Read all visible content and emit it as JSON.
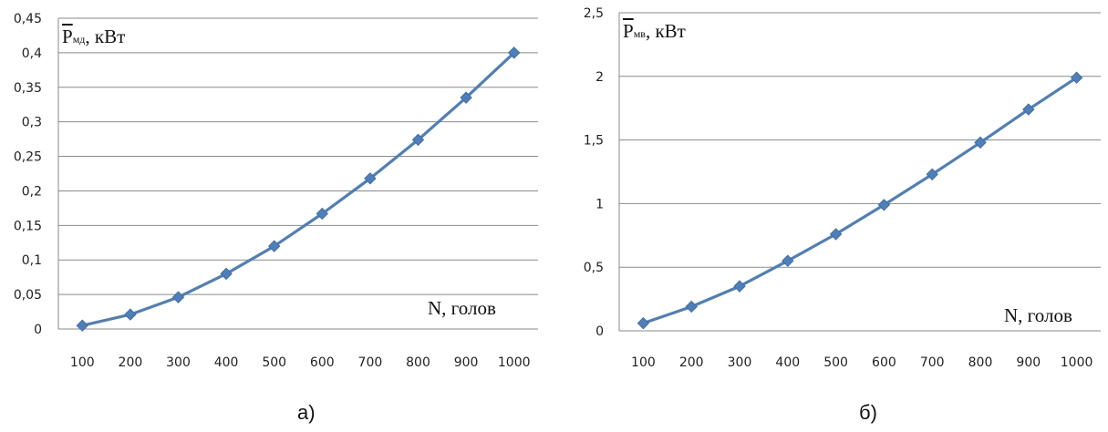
{
  "chart_data": [
    {
      "type": "line",
      "ylabel_symbol": "P",
      "ylabel_subscript": "мд",
      "ylabel_unit": ", кВт",
      "xlabel": "N, голов",
      "caption": "а)",
      "categories": [
        "100",
        "200",
        "300",
        "400",
        "500",
        "600",
        "700",
        "800",
        "900",
        "1000"
      ],
      "values": [
        0.005,
        0.021,
        0.046,
        0.08,
        0.12,
        0.167,
        0.218,
        0.274,
        0.335,
        0.4
      ],
      "ylim": [
        0,
        0.45
      ],
      "yticks": [
        "0",
        "0,05",
        "0,1",
        "0,15",
        "0,2",
        "0,25",
        "0,3",
        "0,35",
        "0,4",
        "0,45"
      ],
      "grid": true,
      "line_color": "#4f7fb8"
    },
    {
      "type": "line",
      "ylabel_symbol": "P",
      "ylabel_subscript": "мв",
      "ylabel_unit": ", кВт",
      "xlabel": "N, голов",
      "caption": "б)",
      "categories": [
        "100",
        "200",
        "300",
        "400",
        "500",
        "600",
        "700",
        "800",
        "900",
        "1000"
      ],
      "values": [
        0.06,
        0.19,
        0.35,
        0.55,
        0.76,
        0.99,
        1.23,
        1.48,
        1.74,
        1.99
      ],
      "ylim": [
        0,
        2.5
      ],
      "yticks": [
        "0",
        "0,5",
        "1",
        "1,5",
        "2",
        "2,5"
      ],
      "grid": true,
      "line_color": "#4f7fb8"
    }
  ]
}
